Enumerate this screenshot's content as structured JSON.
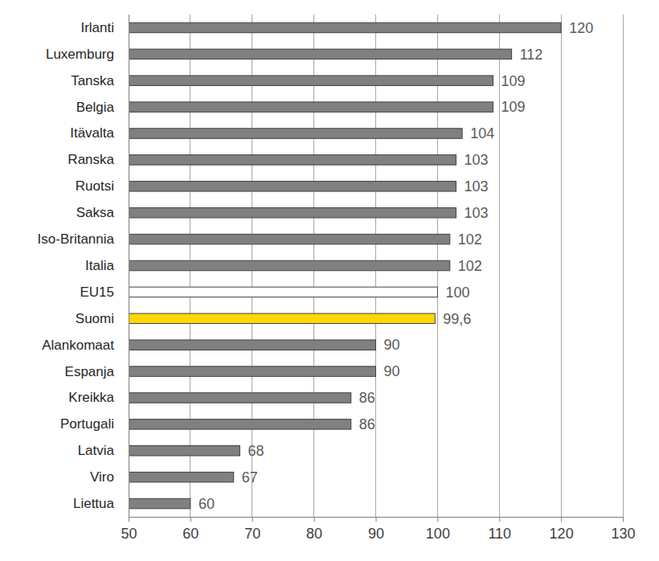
{
  "chart_data": {
    "type": "bar",
    "orientation": "horizontal",
    "categories": [
      "Irlanti",
      "Luxemburg",
      "Tanska",
      "Belgia",
      "Itävalta",
      "Ranska",
      "Ruotsi",
      "Saksa",
      "Iso-Britannia",
      "Italia",
      "EU15",
      "Suomi",
      "Alankomaat",
      "Espanja",
      "Kreikka",
      "Portugali",
      "Latvia",
      "Viro",
      "Liettua"
    ],
    "values": [
      120,
      112,
      109,
      109,
      104,
      103,
      103,
      103,
      102,
      102,
      100,
      99.6,
      90,
      90,
      86,
      86,
      68,
      67,
      60
    ],
    "value_labels": [
      "120",
      "112",
      "109",
      "109",
      "104",
      "103",
      "103",
      "103",
      "102",
      "102",
      "100",
      "99,6",
      "90",
      "90",
      "86",
      "86",
      "68",
      "67",
      "60"
    ],
    "colors": [
      "#808080",
      "#808080",
      "#808080",
      "#808080",
      "#808080",
      "#808080",
      "#808080",
      "#808080",
      "#808080",
      "#808080",
      "#ffffff",
      "#ffd700",
      "#808080",
      "#808080",
      "#808080",
      "#808080",
      "#808080",
      "#808080",
      "#808080"
    ],
    "xlim": [
      50,
      130
    ],
    "xticks": [
      50,
      60,
      70,
      80,
      90,
      100,
      110,
      120,
      130
    ],
    "grid": true,
    "data_labels": true
  }
}
